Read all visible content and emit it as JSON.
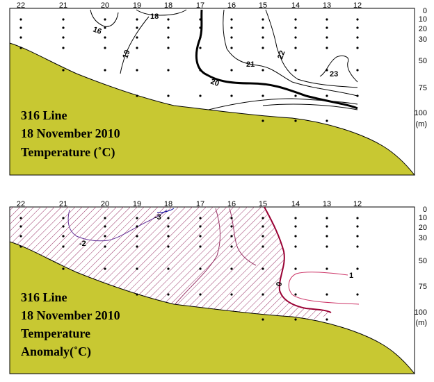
{
  "chart_data": [
    {
      "type": "contour",
      "title_lines": [
        "316 Line",
        "18 November 2010",
        "Temperature (˚C)"
      ],
      "stations": [
        "22",
        "21",
        "20",
        "19",
        "18",
        "17",
        "16",
        "15",
        "14",
        "13",
        "12"
      ],
      "depth_ticks": [
        "0",
        "10",
        "20",
        "30",
        "50",
        "75",
        "100"
      ],
      "depth_unit": "(m)",
      "contour_levels": [
        "16",
        "18",
        "19",
        "20",
        "21",
        "22",
        "23"
      ],
      "colors": {
        "bottom": "#c8c832",
        "contour": "#000000"
      }
    },
    {
      "type": "contour",
      "title_lines": [
        "316 Line",
        "18 November 2010",
        "Temperature",
        "Anomaly(˚C)"
      ],
      "stations": [
        "22",
        "21",
        "20",
        "19",
        "18",
        "17",
        "16",
        "15",
        "14",
        "13",
        "12"
      ],
      "depth_ticks": [
        "0",
        "10",
        "20",
        "30",
        "50",
        "75",
        "100"
      ],
      "depth_unit": "(m)",
      "contour_levels": [
        "-3",
        "-2",
        "0",
        "1"
      ],
      "colors": {
        "bottom": "#c8c832",
        "negative_hatch": "#993366",
        "zero_line": "#990033",
        "positive_line": "#cc3366",
        "negative_line": "#663399"
      }
    }
  ]
}
